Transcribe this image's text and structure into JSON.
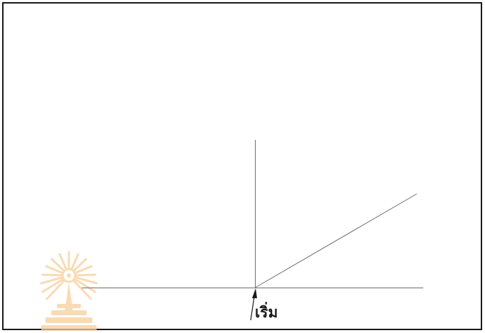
{
  "diagram": {
    "start_label": "เริ่ม"
  },
  "colors": {
    "line": "#6e6e6e",
    "arrow": "#1a1a1a",
    "frame": "#1a1a1a",
    "watermark": "#f6cf9c"
  },
  "watermark": {
    "icon": "chulalongkorn-university-emblem-icon"
  }
}
